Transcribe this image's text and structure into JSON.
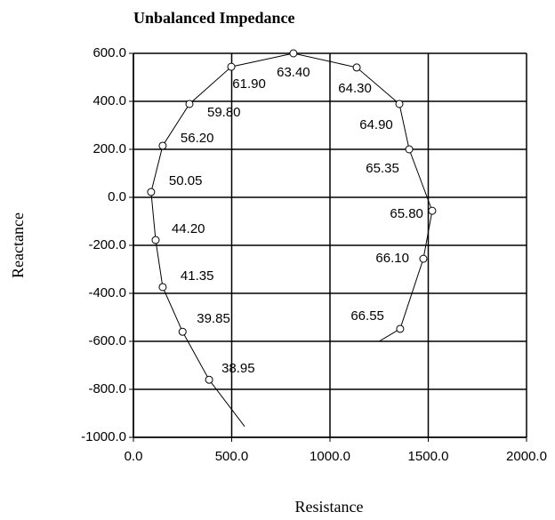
{
  "chart_data": {
    "type": "line",
    "title": "Unbalanced Impedance",
    "x_label": "Resistance",
    "y_label": "Reactance",
    "x": [
      566,
      385,
      250,
      149,
      113,
      90,
      149,
      285,
      498,
      814,
      1136,
      1353,
      1403,
      1520,
      1475,
      1357,
      1250
    ],
    "values": [
      -955,
      -760,
      -560,
      -374,
      -178,
      22,
      215,
      389,
      544,
      600,
      541,
      389,
      200,
      -56,
      -256,
      -548,
      -600
    ],
    "point_labels": [
      null,
      "38.95",
      "39.85",
      "41.35",
      "44.20",
      "50.05",
      "56.20",
      "59.80",
      "61.90",
      "63.40",
      "64.30",
      "64.90",
      "65.35",
      "65.80",
      "66.10",
      "66.55",
      null
    ],
    "color": "#000000",
    "xlim": [
      0,
      2000
    ],
    "xticks": [
      {
        "value": 0,
        "label": "0.0"
      },
      {
        "value": 500,
        "label": "500.0"
      },
      {
        "value": 1000,
        "label": "1000.0"
      },
      {
        "value": 1500,
        "label": "1500.0"
      },
      {
        "value": 2000,
        "label": "2000.0"
      }
    ],
    "ylim": [
      -1000,
      600
    ],
    "yticks": [
      {
        "value": -1000,
        "label": "-1000.0"
      },
      {
        "value": -800,
        "label": "-800.0"
      },
      {
        "value": -600,
        "label": "-600.0"
      },
      {
        "value": -400,
        "label": "-400.0"
      },
      {
        "value": -200,
        "label": "-200.0"
      },
      {
        "value": 0,
        "label": "0.0"
      },
      {
        "value": 200,
        "label": "200.0"
      },
      {
        "value": 400,
        "label": "400.0"
      },
      {
        "value": 600,
        "label": "600.0"
      }
    ],
    "grid": true
  }
}
